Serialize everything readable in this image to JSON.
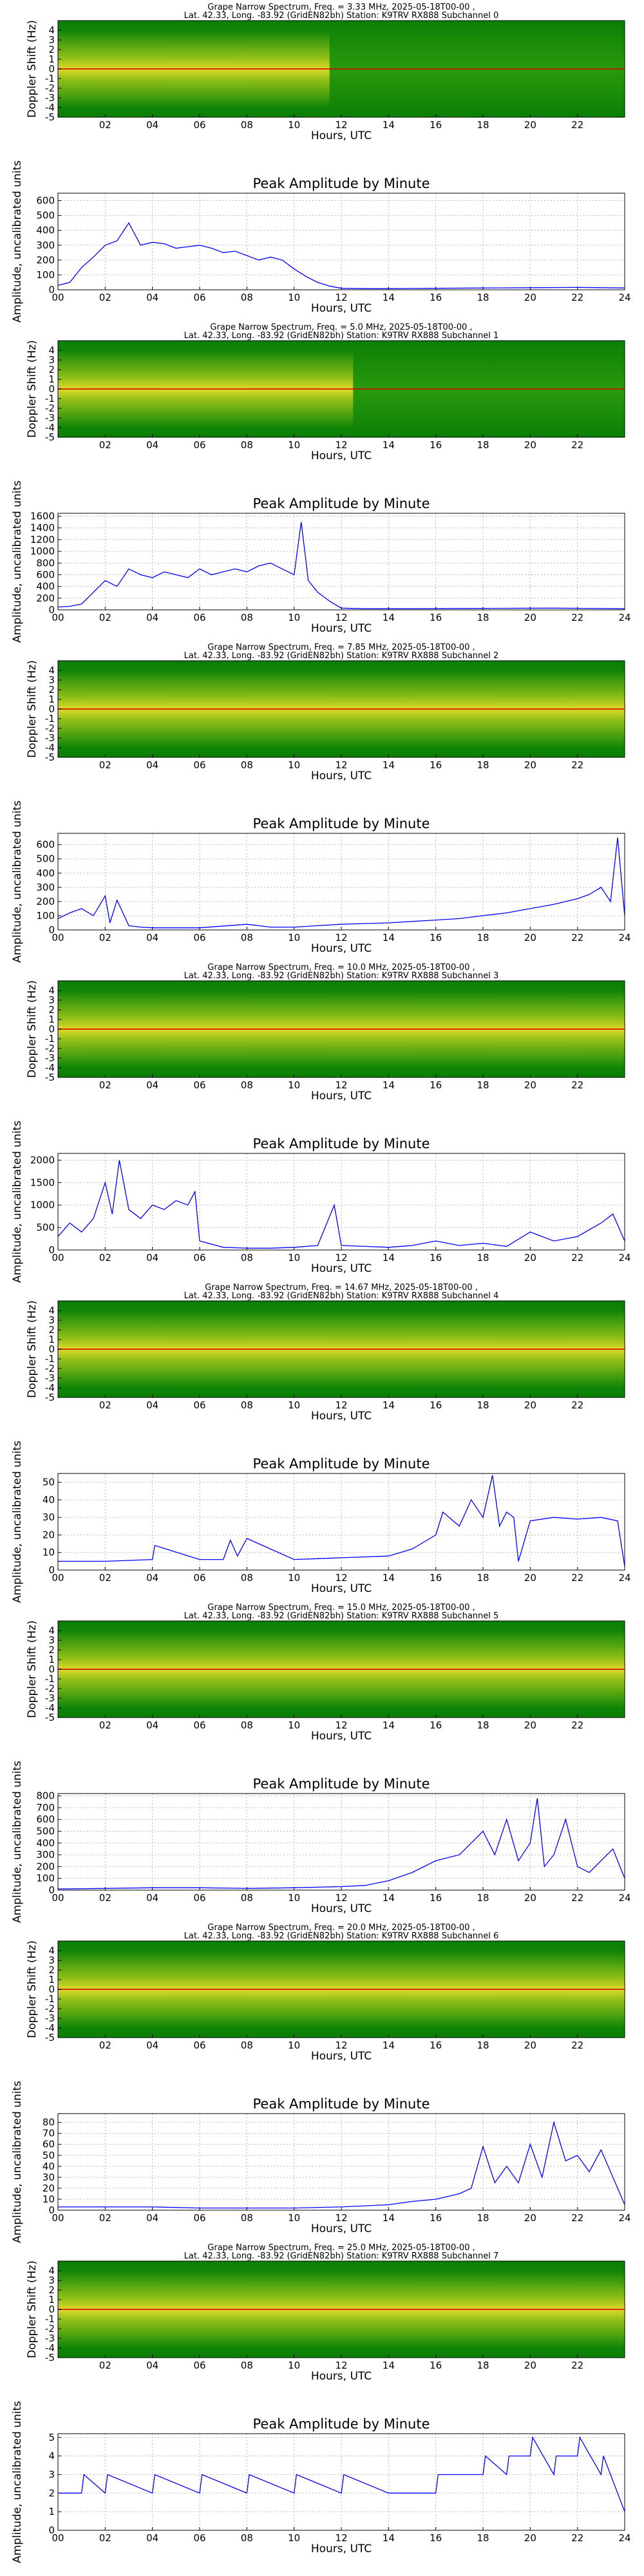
{
  "colors": {
    "spectrogram_background": "#0f8a07",
    "spectrogram_hot": "#d80000",
    "amplitude_line": "#0000ff",
    "grid": "#b7b7b7"
  },
  "chart_data": [
    {
      "type": "heatmap",
      "panel": "spectrogram",
      "title_line1": "Grape Narrow Spectrum, Freq. = 3.33 MHz, 2025-05-18T00-00 ,",
      "title_line2": "Lat.  42.33, Long. -83.92 (GridEN82bh) Station: K9TRV RX888 Subchannel 0",
      "xlabel": "Hours, UTC",
      "ylabel": "Doppler Shift (Hz)",
      "xlim": [
        0,
        24
      ],
      "ylim": [
        -5,
        5
      ],
      "xticks": [
        "02",
        "04",
        "06",
        "08",
        "10",
        "12",
        "14",
        "16",
        "18",
        "20",
        "22"
      ],
      "yticks": [
        "4",
        "3",
        "2",
        "1",
        "0",
        "-1",
        "-2",
        "-3",
        "-4",
        "-5"
      ],
      "activity_hours": [
        0,
        11.5
      ],
      "carrier_hz": 0
    },
    {
      "type": "line",
      "panel": "amplitude",
      "title": "Peak Amplitude by Minute",
      "xlabel": "Hours, UTC",
      "ylabel": "Amplitude, uncalibrated units",
      "xlim": [
        0,
        24
      ],
      "ylim": [
        0,
        650
      ],
      "xticks": [
        "00",
        "02",
        "04",
        "06",
        "08",
        "10",
        "12",
        "14",
        "16",
        "18",
        "20",
        "22",
        "24"
      ],
      "yticks": [
        "0",
        "100",
        "200",
        "300",
        "400",
        "500",
        "600"
      ],
      "x": [
        0,
        0.5,
        1,
        1.5,
        2,
        2.5,
        3,
        3.5,
        4,
        4.5,
        5,
        5.5,
        6,
        6.5,
        7,
        7.5,
        8,
        8.5,
        9,
        9.5,
        10,
        10.5,
        11,
        11.5,
        12,
        13,
        14,
        16,
        18,
        20,
        22,
        24
      ],
      "y": [
        30,
        50,
        150,
        220,
        300,
        330,
        450,
        300,
        320,
        310,
        280,
        290,
        300,
        280,
        250,
        260,
        230,
        200,
        220,
        200,
        140,
        90,
        50,
        25,
        10,
        8,
        8,
        10,
        12,
        14,
        16,
        12
      ]
    },
    {
      "type": "heatmap",
      "panel": "spectrogram",
      "title_line1": "Grape Narrow Spectrum, Freq. = 5.0 MHz, 2025-05-18T00-00 ,",
      "title_line2": "Lat.  42.33, Long. -83.92 (GridEN82bh) Station: K9TRV RX888 Subchannel 1",
      "xlabel": "Hours, UTC",
      "ylabel": "Doppler Shift (Hz)",
      "xlim": [
        0,
        24
      ],
      "ylim": [
        -5,
        5
      ],
      "xticks": [
        "02",
        "04",
        "06",
        "08",
        "10",
        "12",
        "14",
        "16",
        "18",
        "20",
        "22"
      ],
      "yticks": [
        "4",
        "3",
        "2",
        "1",
        "0",
        "-1",
        "-2",
        "-3",
        "-4",
        "-5"
      ],
      "activity_hours": [
        0,
        12.5
      ],
      "carrier_hz": 0
    },
    {
      "type": "line",
      "panel": "amplitude",
      "title": "Peak Amplitude by Minute",
      "xlabel": "Hours, UTC",
      "ylabel": "Amplitude, uncalibrated units",
      "xlim": [
        0,
        24
      ],
      "ylim": [
        0,
        1650
      ],
      "xticks": [
        "00",
        "02",
        "04",
        "06",
        "08",
        "10",
        "12",
        "14",
        "16",
        "18",
        "20",
        "22",
        "24"
      ],
      "yticks": [
        "0",
        "200",
        "400",
        "600",
        "800",
        "1000",
        "1200",
        "1400",
        "1600"
      ],
      "x": [
        0,
        0.5,
        1,
        1.5,
        2,
        2.5,
        3,
        3.5,
        4,
        4.5,
        5,
        5.5,
        6,
        6.5,
        7,
        7.5,
        8,
        8.5,
        9,
        9.5,
        10,
        10.3,
        10.6,
        11,
        11.5,
        12,
        13,
        15,
        18,
        21,
        24
      ],
      "y": [
        50,
        60,
        100,
        300,
        500,
        400,
        700,
        600,
        550,
        650,
        600,
        550,
        700,
        600,
        650,
        700,
        650,
        750,
        800,
        700,
        600,
        1500,
        500,
        300,
        150,
        30,
        20,
        20,
        25,
        30,
        20
      ]
    },
    {
      "type": "heatmap",
      "panel": "spectrogram",
      "title_line1": "Grape Narrow Spectrum, Freq. = 7.85 MHz, 2025-05-18T00-00 ,",
      "title_line2": "Lat.  42.33, Long. -83.92 (GridEN82bh) Station: K9TRV RX888 Subchannel 2",
      "xlabel": "Hours, UTC",
      "ylabel": "Doppler Shift (Hz)",
      "xlim": [
        0,
        24
      ],
      "ylim": [
        -5,
        5
      ],
      "xticks": [
        "02",
        "04",
        "06",
        "08",
        "10",
        "12",
        "14",
        "16",
        "18",
        "20",
        "22"
      ],
      "yticks": [
        "4",
        "3",
        "2",
        "1",
        "0",
        "-1",
        "-2",
        "-3",
        "-4",
        "-5"
      ],
      "activity_hours": [
        0,
        24
      ],
      "carrier_hz": 0
    },
    {
      "type": "line",
      "panel": "amplitude",
      "title": "Peak Amplitude by Minute",
      "xlabel": "Hours, UTC",
      "ylabel": "Amplitude, uncalibrated units",
      "xlim": [
        0,
        24
      ],
      "ylim": [
        0,
        680
      ],
      "xticks": [
        "00",
        "02",
        "04",
        "06",
        "08",
        "10",
        "12",
        "14",
        "16",
        "18",
        "20",
        "22",
        "24"
      ],
      "yticks": [
        "0",
        "100",
        "200",
        "300",
        "400",
        "500",
        "600"
      ],
      "x": [
        0,
        0.5,
        1,
        1.5,
        2,
        2.2,
        2.5,
        3,
        3.5,
        4,
        6,
        8,
        9,
        10,
        11,
        12,
        13,
        14,
        15,
        16,
        17,
        18,
        19,
        20,
        21,
        22,
        22.5,
        23,
        23.4,
        23.7,
        24
      ],
      "y": [
        80,
        120,
        150,
        100,
        240,
        50,
        210,
        30,
        20,
        15,
        15,
        40,
        20,
        20,
        30,
        40,
        45,
        50,
        60,
        70,
        80,
        100,
        120,
        150,
        180,
        220,
        250,
        300,
        200,
        650,
        100
      ]
    },
    {
      "type": "heatmap",
      "panel": "spectrogram",
      "title_line1": "Grape Narrow Spectrum, Freq. = 10.0 MHz, 2025-05-18T00-00 ,",
      "title_line2": "Lat.  42.33, Long. -83.92 (GridEN82bh) Station: K9TRV RX888 Subchannel 3",
      "xlabel": "Hours, UTC",
      "ylabel": "Doppler Shift (Hz)",
      "xlim": [
        0,
        24
      ],
      "ylim": [
        -5,
        5
      ],
      "xticks": [
        "02",
        "04",
        "06",
        "08",
        "10",
        "12",
        "14",
        "16",
        "18",
        "20",
        "22"
      ],
      "yticks": [
        "4",
        "3",
        "2",
        "1",
        "0",
        "-1",
        "-2",
        "-3",
        "-4",
        "-5"
      ],
      "activity_hours": [
        0,
        24
      ],
      "carrier_hz": 0
    },
    {
      "type": "line",
      "panel": "amplitude",
      "title": "Peak Amplitude by Minute",
      "xlabel": "Hours, UTC",
      "ylabel": "Amplitude, uncalibrated units",
      "xlim": [
        0,
        24
      ],
      "ylim": [
        0,
        2150
      ],
      "xticks": [
        "00",
        "02",
        "04",
        "06",
        "08",
        "10",
        "12",
        "14",
        "16",
        "18",
        "20",
        "22",
        "24"
      ],
      "yticks": [
        "0",
        "500",
        "1000",
        "1500",
        "2000"
      ],
      "x": [
        0,
        0.5,
        1,
        1.5,
        2,
        2.3,
        2.6,
        3,
        3.5,
        4,
        4.5,
        5,
        5.5,
        5.8,
        6,
        7,
        8,
        9,
        10,
        11,
        11.7,
        12,
        13,
        14,
        15,
        16,
        17,
        18,
        19,
        20,
        21,
        22,
        23,
        23.5,
        24
      ],
      "y": [
        300,
        600,
        400,
        700,
        1500,
        800,
        2000,
        900,
        700,
        1000,
        900,
        1100,
        1000,
        1300,
        200,
        60,
        40,
        40,
        60,
        100,
        1000,
        100,
        80,
        60,
        100,
        200,
        100,
        150,
        80,
        400,
        200,
        300,
        600,
        800,
        200
      ]
    },
    {
      "type": "heatmap",
      "panel": "spectrogram",
      "title_line1": "Grape Narrow Spectrum, Freq. = 14.67 MHz, 2025-05-18T00-00 ,",
      "title_line2": "Lat.  42.33, Long. -83.92 (GridEN82bh) Station: K9TRV RX888 Subchannel 4",
      "xlabel": "Hours, UTC",
      "ylabel": "Doppler Shift (Hz)",
      "xlim": [
        0,
        24
      ],
      "ylim": [
        -5,
        5
      ],
      "xticks": [
        "02",
        "04",
        "06",
        "08",
        "10",
        "12",
        "14",
        "16",
        "18",
        "20",
        "22"
      ],
      "yticks": [
        "4",
        "3",
        "2",
        "1",
        "0",
        "-1",
        "-2",
        "-3",
        "-4",
        "-5"
      ],
      "activity_hours": [
        0,
        24
      ],
      "carrier_hz": 0
    },
    {
      "type": "line",
      "panel": "amplitude",
      "title": "Peak Amplitude by Minute",
      "xlabel": "Hours, UTC",
      "ylabel": "Amplitude, uncalibrated units",
      "xlim": [
        0,
        24
      ],
      "ylim": [
        0,
        55
      ],
      "xticks": [
        "00",
        "02",
        "04",
        "06",
        "08",
        "10",
        "12",
        "14",
        "16",
        "18",
        "20",
        "22",
        "24"
      ],
      "yticks": [
        "0",
        "10",
        "20",
        "30",
        "40",
        "50"
      ],
      "x": [
        0,
        2,
        4,
        4.1,
        6,
        7,
        7.3,
        7.6,
        8,
        10,
        12,
        14,
        15,
        16,
        16.3,
        17,
        17.5,
        18,
        18.4,
        18.7,
        19,
        19.3,
        19.5,
        20,
        21,
        22,
        23,
        23.7,
        24
      ],
      "y": [
        5,
        5,
        6,
        14,
        6,
        6,
        17,
        8,
        18,
        6,
        7,
        8,
        12,
        20,
        33,
        25,
        40,
        30,
        54,
        25,
        33,
        30,
        5,
        28,
        30,
        29,
        30,
        28,
        2
      ]
    },
    {
      "type": "heatmap",
      "panel": "spectrogram",
      "title_line1": "Grape Narrow Spectrum, Freq. = 15.0 MHz, 2025-05-18T00-00 ,",
      "title_line2": "Lat.  42.33, Long. -83.92 (GridEN82bh) Station: K9TRV RX888 Subchannel 5",
      "xlabel": "Hours, UTC",
      "ylabel": "Doppler Shift (Hz)",
      "xlim": [
        0,
        24
      ],
      "ylim": [
        -5,
        5
      ],
      "xticks": [
        "02",
        "04",
        "06",
        "08",
        "10",
        "12",
        "14",
        "16",
        "18",
        "20",
        "22"
      ],
      "yticks": [
        "4",
        "3",
        "2",
        "1",
        "0",
        "-1",
        "-2",
        "-3",
        "-4",
        "-5"
      ],
      "activity_hours": [
        0,
        24
      ],
      "carrier_hz": 0
    },
    {
      "type": "line",
      "panel": "amplitude",
      "title": "Peak Amplitude by Minute",
      "xlabel": "Hours, UTC",
      "ylabel": "Amplitude, uncalibrated units",
      "xlim": [
        0,
        24
      ],
      "ylim": [
        0,
        820
      ],
      "xticks": [
        "00",
        "02",
        "04",
        "06",
        "08",
        "10",
        "12",
        "14",
        "16",
        "18",
        "20",
        "22",
        "24"
      ],
      "yticks": [
        "0",
        "100",
        "200",
        "300",
        "400",
        "500",
        "600",
        "700",
        "800"
      ],
      "x": [
        0,
        2,
        4,
        6,
        8,
        10,
        12,
        13,
        14,
        15,
        16,
        17,
        17.5,
        18,
        18.5,
        19,
        19.5,
        20,
        20.3,
        20.6,
        21,
        21.5,
        22,
        22.5,
        23,
        23.5,
        24
      ],
      "y": [
        10,
        15,
        20,
        20,
        15,
        20,
        30,
        40,
        80,
        150,
        250,
        300,
        400,
        500,
        300,
        600,
        250,
        400,
        780,
        200,
        300,
        600,
        200,
        150,
        250,
        350,
        100
      ]
    },
    {
      "type": "heatmap",
      "panel": "spectrogram",
      "title_line1": "Grape Narrow Spectrum, Freq. = 20.0 MHz, 2025-05-18T00-00 ,",
      "title_line2": "Lat.  42.33, Long. -83.92 (GridEN82bh) Station: K9TRV RX888 Subchannel 6",
      "xlabel": "Hours, UTC",
      "ylabel": "Doppler Shift (Hz)",
      "xlim": [
        0,
        24
      ],
      "ylim": [
        -5,
        5
      ],
      "xticks": [
        "02",
        "04",
        "06",
        "08",
        "10",
        "12",
        "14",
        "16",
        "18",
        "20",
        "22"
      ],
      "yticks": [
        "4",
        "3",
        "2",
        "1",
        "0",
        "-1",
        "-2",
        "-3",
        "-4",
        "-5"
      ],
      "activity_hours": [
        0,
        24
      ],
      "carrier_hz": 0
    },
    {
      "type": "line",
      "panel": "amplitude",
      "title": "Peak Amplitude by Minute",
      "xlabel": "Hours, UTC",
      "ylabel": "Amplitude, uncalibrated units",
      "xlim": [
        0,
        24
      ],
      "ylim": [
        0,
        88
      ],
      "xticks": [
        "00",
        "02",
        "04",
        "06",
        "08",
        "10",
        "12",
        "14",
        "16",
        "18",
        "20",
        "22",
        "24"
      ],
      "yticks": [
        "0",
        "10",
        "20",
        "30",
        "40",
        "50",
        "60",
        "70",
        "80"
      ],
      "x": [
        0,
        2,
        4,
        6,
        8,
        10,
        12,
        14,
        15,
        16,
        17,
        17.5,
        18,
        18.5,
        19,
        19.5,
        20,
        20.5,
        21,
        21.5,
        22,
        22.5,
        23,
        23.5,
        24
      ],
      "y": [
        3,
        3,
        3,
        2,
        2,
        2,
        3,
        5,
        8,
        10,
        15,
        20,
        58,
        25,
        40,
        25,
        60,
        30,
        80,
        45,
        50,
        35,
        55,
        30,
        5
      ]
    },
    {
      "type": "heatmap",
      "panel": "spectrogram",
      "title_line1": "Grape Narrow Spectrum, Freq. = 25.0 MHz, 2025-05-18T00-00 ,",
      "title_line2": "Lat.  42.33, Long. -83.92 (GridEN82bh) Station: K9TRV RX888 Subchannel 7",
      "xlabel": "Hours, UTC",
      "ylabel": "Doppler Shift (Hz)",
      "xlim": [
        0,
        24
      ],
      "ylim": [
        -5,
        5
      ],
      "xticks": [
        "02",
        "04",
        "06",
        "08",
        "10",
        "12",
        "14",
        "16",
        "18",
        "20",
        "22"
      ],
      "yticks": [
        "4",
        "3",
        "2",
        "1",
        "0",
        "-1",
        "-2",
        "-3",
        "-4",
        "-5"
      ],
      "activity_hours": [
        0,
        24
      ],
      "carrier_hz": 0
    },
    {
      "type": "line",
      "panel": "amplitude",
      "title": "Peak Amplitude by Minute",
      "xlabel": "Hours, UTC",
      "ylabel": "Amplitude, uncalibrated units",
      "xlim": [
        0,
        24
      ],
      "ylim": [
        0,
        5.2
      ],
      "xticks": [
        "00",
        "02",
        "04",
        "06",
        "08",
        "10",
        "12",
        "14",
        "16",
        "18",
        "20",
        "22",
        "24"
      ],
      "yticks": [
        "0",
        "1",
        "2",
        "3",
        "4",
        "5"
      ],
      "x": [
        0,
        1,
        1.1,
        2,
        2.1,
        4,
        4.1,
        6,
        6.1,
        8,
        8.1,
        10,
        10.1,
        12,
        12.1,
        14,
        16,
        16.1,
        18,
        18.1,
        19,
        19.1,
        20,
        20.1,
        21,
        21.1,
        22,
        22.1,
        23,
        23.1,
        24
      ],
      "y": [
        2,
        2,
        3,
        2,
        3,
        2,
        3,
        2,
        3,
        2,
        3,
        2,
        3,
        2,
        3,
        2,
        2,
        3,
        3,
        4,
        3,
        4,
        4,
        5,
        3,
        4,
        4,
        5,
        3,
        4,
        1
      ]
    }
  ]
}
